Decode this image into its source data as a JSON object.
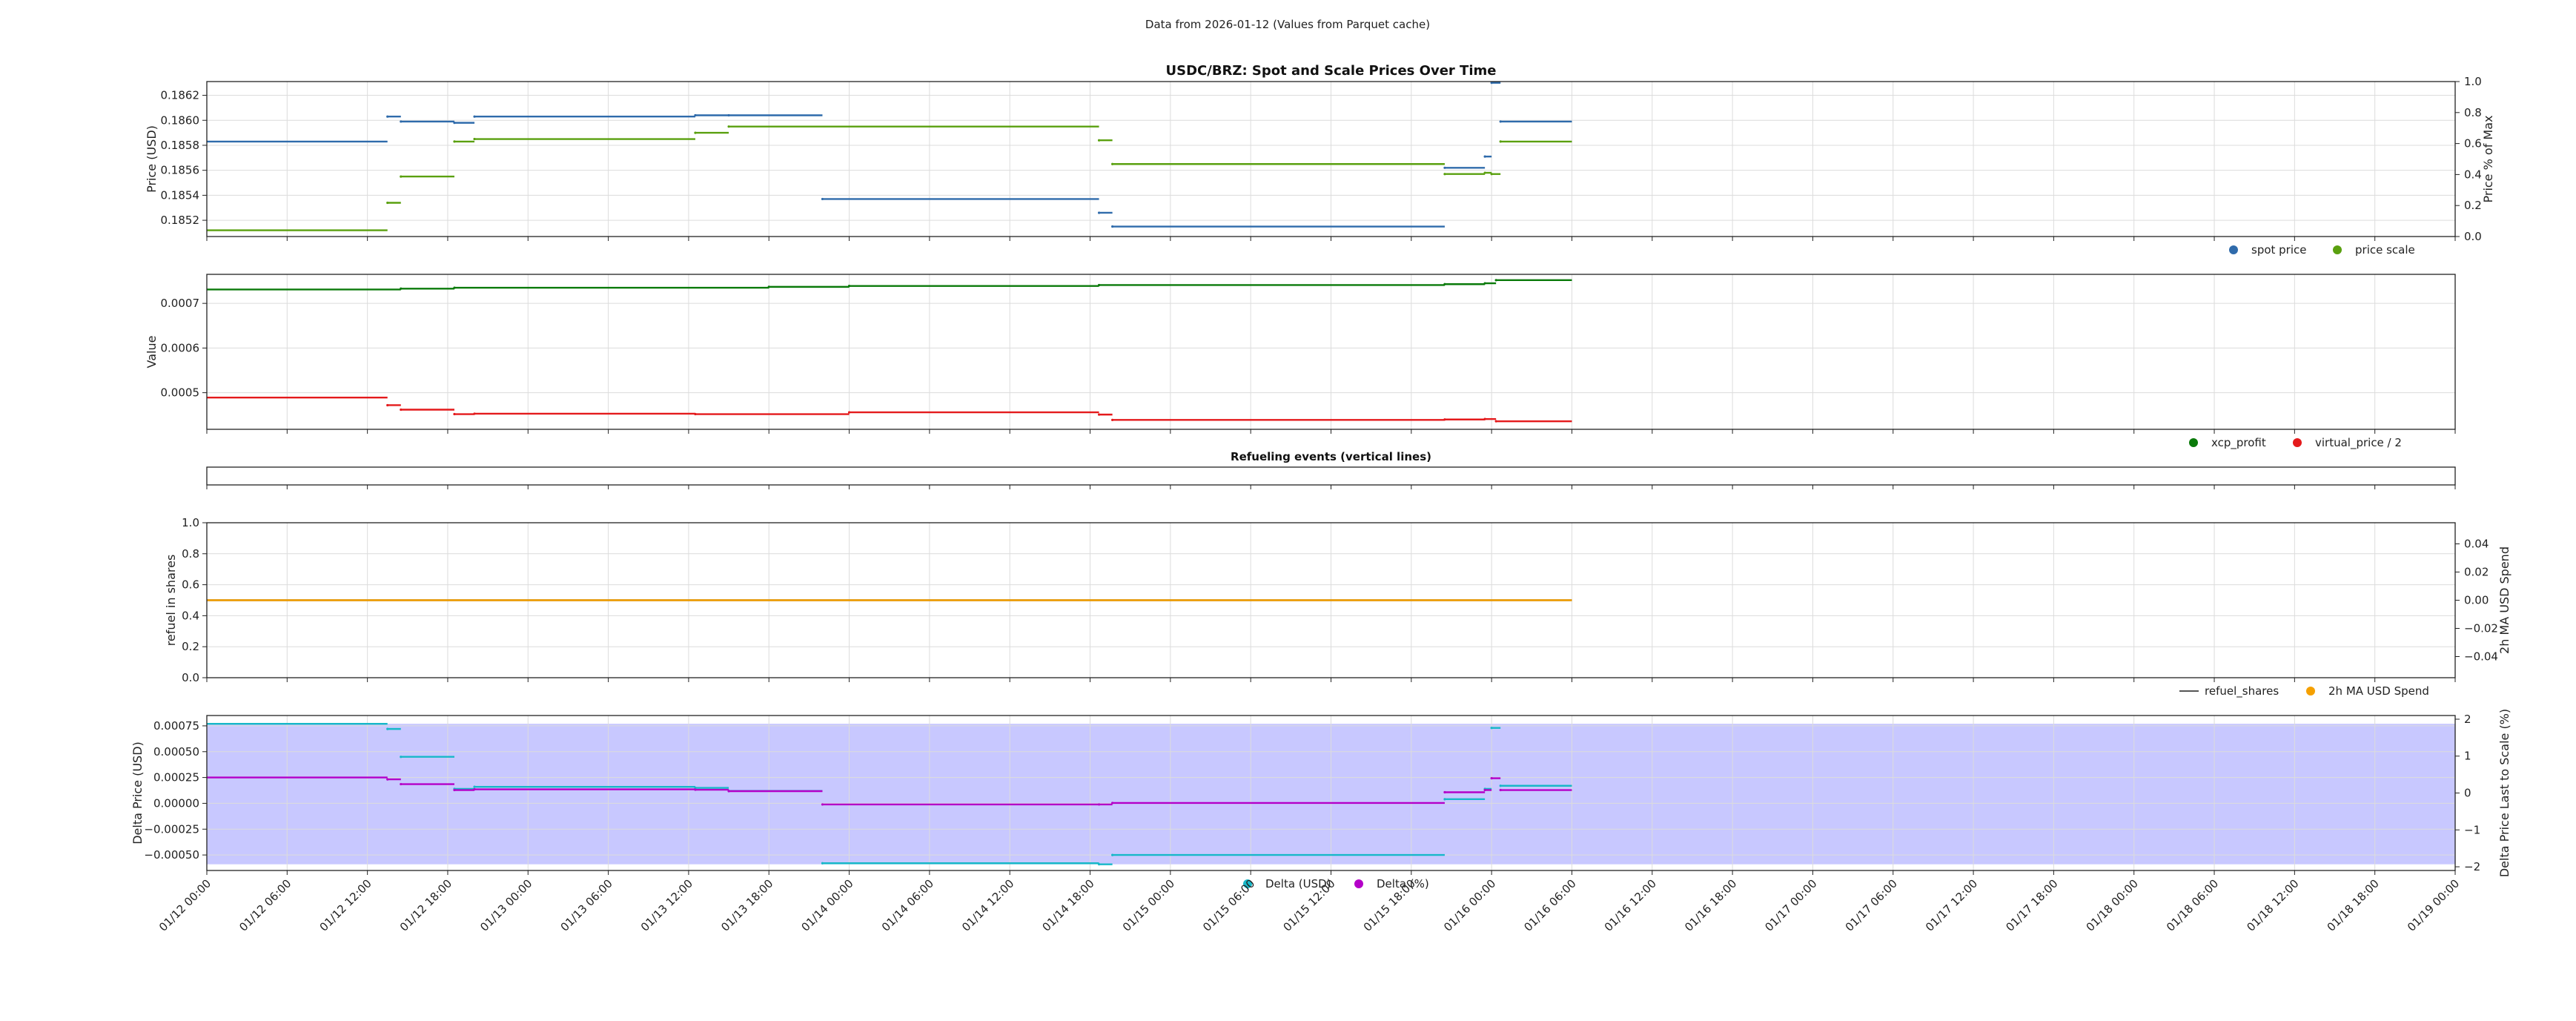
{
  "suptitle": "Data from 2026-01-12 (Values from Parquet cache)",
  "colors": {
    "spot": "#2f6bab",
    "scale": "#5aa00f",
    "xcp": "#0a7a0a",
    "vp": "#e41a1c",
    "refuel": "#555555",
    "ma": "#f5a000",
    "delta_usd": "#17b8c8",
    "delta_pct": "#b400c8",
    "fill": "#c8c8ff"
  },
  "x_axis": {
    "range": [
      "2026-01-12T00:00",
      "2026-01-19T00:00"
    ],
    "tick_labels": [
      "01/12 00:00",
      "01/12 06:00",
      "01/12 12:00",
      "01/12 18:00",
      "01/13 00:00",
      "01/13 06:00",
      "01/13 12:00",
      "01/13 18:00",
      "01/14 00:00",
      "01/14 06:00",
      "01/14 12:00",
      "01/14 18:00",
      "01/15 00:00",
      "01/15 06:00",
      "01/15 12:00",
      "01/15 18:00",
      "01/16 00:00",
      "01/16 06:00",
      "01/16 12:00",
      "01/16 18:00",
      "01/17 00:00",
      "01/17 06:00",
      "01/17 12:00",
      "01/17 18:00",
      "01/18 00:00",
      "01/18 06:00",
      "01/18 12:00",
      "01/18 18:00",
      "01/19 00:00"
    ]
  },
  "chart_data": [
    {
      "type": "line",
      "title": "USDC/BRZ: Spot and Scale Prices Over Time",
      "ylabel": "Price (USD)",
      "ylim": [
        0.18507,
        0.18631
      ],
      "yticks": [
        0.1852,
        0.1854,
        0.1856,
        0.1858,
        0.186,
        0.1862
      ],
      "ytick_labels": [
        "0.1852",
        "0.1854",
        "0.1856",
        "0.1858",
        "0.1860",
        "0.1862"
      ],
      "y2label": "Price % of Max",
      "y2lim": [
        0,
        1
      ],
      "y2ticks": [
        0,
        0.2,
        0.4,
        0.6,
        0.8,
        1.0
      ],
      "y2tick_labels": [
        "0.0",
        "0.2",
        "0.4",
        "0.6",
        "0.8",
        "1.0"
      ],
      "grid": true,
      "legend": "below-right",
      "series": [
        {
          "name": "spot price",
          "color_key": "spot",
          "x": [
            "2026-01-12T00:00",
            "2026-01-12T13:30",
            "2026-01-12T14:30",
            "2026-01-12T18:30",
            "2026-01-12T20:00",
            "2026-01-13T12:30",
            "2026-01-13T15:00",
            "2026-01-13T22:00",
            "2026-01-14T18:40",
            "2026-01-14T19:40",
            "2026-01-15T20:30",
            "2026-01-15T23:30",
            "2026-01-16T00:00",
            "2026-01-16T00:40",
            "2026-01-16T06:00"
          ],
          "y": [
            0.18583,
            0.18603,
            0.18599,
            0.18598,
            0.18603,
            0.18604,
            0.18604,
            0.18537,
            0.18526,
            0.18515,
            0.18562,
            0.18571,
            0.1863,
            0.18599,
            0.18599
          ]
        },
        {
          "name": "price scale",
          "color_key": "scale",
          "x": [
            "2026-01-12T00:00",
            "2026-01-12T13:30",
            "2026-01-12T14:30",
            "2026-01-12T18:30",
            "2026-01-12T20:00",
            "2026-01-13T12:30",
            "2026-01-13T15:00",
            "2026-01-14T18:40",
            "2026-01-14T19:40",
            "2026-01-15T20:30",
            "2026-01-15T23:30",
            "2026-01-16T00:00",
            "2026-01-16T00:40",
            "2026-01-16T06:00"
          ],
          "y": [
            0.18512,
            0.18534,
            0.18555,
            0.18583,
            0.18585,
            0.1859,
            0.18595,
            0.18584,
            0.18565,
            0.18557,
            0.18558,
            0.18557,
            0.18583,
            0.18583
          ]
        }
      ]
    },
    {
      "type": "line",
      "ylabel": "Value",
      "ylim": [
        0.000418,
        0.000765
      ],
      "yticks": [
        0.0005,
        0.0006,
        0.0007
      ],
      "ytick_labels": [
        "0.0005",
        "0.0006",
        "0.0007"
      ],
      "grid": true,
      "legend": "below-right",
      "series": [
        {
          "name": "xcp_profit",
          "color_key": "xcp",
          "x": [
            "2026-01-12T00:00",
            "2026-01-12T14:30",
            "2026-01-12T18:30",
            "2026-01-13T18:00",
            "2026-01-14T00:00",
            "2026-01-14T18:40",
            "2026-01-15T20:30",
            "2026-01-15T23:30",
            "2026-01-16T00:20",
            "2026-01-16T06:00"
          ],
          "y": [
            0.000731,
            0.000733,
            0.000735,
            0.000737,
            0.000739,
            0.000741,
            0.000743,
            0.000745,
            0.000752,
            0.000752
          ]
        },
        {
          "name": "virtual_price / 2",
          "color_key": "vp",
          "x": [
            "2026-01-12T00:00",
            "2026-01-12T13:30",
            "2026-01-12T14:30",
            "2026-01-12T18:30",
            "2026-01-12T20:00",
            "2026-01-13T12:30",
            "2026-01-14T00:00",
            "2026-01-14T18:40",
            "2026-01-14T19:40",
            "2026-01-15T20:30",
            "2026-01-15T23:30",
            "2026-01-16T00:20",
            "2026-01-16T06:00"
          ],
          "y": [
            0.000489,
            0.000472,
            0.000462,
            0.000452,
            0.000453,
            0.000452,
            0.000456,
            0.000451,
            0.000439,
            0.00044,
            0.000441,
            0.000436,
            0.000436
          ]
        }
      ]
    },
    {
      "type": "line",
      "title": "Refueling events (vertical lines)",
      "series": []
    },
    {
      "type": "line",
      "ylabel": "refuel in shares",
      "ylim": [
        0,
        1
      ],
      "yticks": [
        0,
        0.2,
        0.4,
        0.6,
        0.8,
        1.0
      ],
      "ytick_labels": [
        "0.0",
        "0.2",
        "0.4",
        "0.6",
        "0.8",
        "1.0"
      ],
      "y2label": "2h MA USD Spend",
      "y2lim": [
        -0.055,
        0.055
      ],
      "y2ticks": [
        -0.04,
        -0.02,
        0,
        0.02,
        0.04
      ],
      "y2tick_labels": [
        "−0.04",
        "−0.02",
        "0.00",
        "0.02",
        "0.04"
      ],
      "grid": true,
      "legend": "below-right",
      "series": [
        {
          "name": "refuel_shares",
          "color_key": "refuel",
          "x": [
            "2026-01-12T00:00",
            "2026-01-16T06:00"
          ],
          "y": [
            0.5,
            0.5
          ]
        },
        {
          "name": "2h MA USD Spend",
          "color_key": "ma",
          "axis": "right",
          "x": [
            "2026-01-12T00:00",
            "2026-01-16T06:00"
          ],
          "y": [
            0,
            0
          ]
        }
      ]
    },
    {
      "type": "area",
      "ylabel": "Delta Price (USD)",
      "ylim": [
        -0.00065,
        0.00085
      ],
      "yticks": [
        -0.0005,
        -0.00025,
        0,
        0.00025,
        0.0005,
        0.00075
      ],
      "ytick_labels": [
        "−0.00050",
        "−0.00025",
        "0.00000",
        "0.00025",
        "0.00050",
        "0.00075"
      ],
      "y2label": "Delta Price Last to Scale (%)",
      "y2lim": [
        -2.1,
        2.1
      ],
      "y2ticks": [
        -2,
        -1,
        0,
        1,
        2
      ],
      "y2tick_labels": [
        "−2",
        "−1",
        "0",
        "1",
        "2"
      ],
      "grid": true,
      "legend": "below-center",
      "series": [
        {
          "name": "Delta (USD)",
          "color_key": "delta_usd",
          "x": [
            "2026-01-12T00:00",
            "2026-01-12T13:30",
            "2026-01-12T14:30",
            "2026-01-12T18:30",
            "2026-01-12T20:00",
            "2026-01-13T12:30",
            "2026-01-13T15:00",
            "2026-01-13T22:00",
            "2026-01-14T18:40",
            "2026-01-14T19:40",
            "2026-01-15T20:30",
            "2026-01-15T23:30",
            "2026-01-16T00:00",
            "2026-01-16T00:40",
            "2026-01-16T06:00"
          ],
          "y": [
            0.00077,
            0.00072,
            0.00045,
            0.00014,
            0.00016,
            0.00015,
            0.00012,
            -0.00058,
            -0.00059,
            -0.0005,
            4e-05,
            0.00014,
            0.00073,
            0.00017,
            0.00017
          ]
        },
        {
          "name": "Delta (%)",
          "color_key": "delta_pct",
          "axis": "right",
          "x": [
            "2026-01-12T00:00",
            "2026-01-12T13:30",
            "2026-01-12T14:30",
            "2026-01-12T18:30",
            "2026-01-12T20:00",
            "2026-01-13T12:30",
            "2026-01-13T15:00",
            "2026-01-13T22:00",
            "2026-01-14T18:40",
            "2026-01-14T19:40",
            "2026-01-15T20:30",
            "2026-01-15T23:30",
            "2026-01-16T00:00",
            "2026-01-16T00:40",
            "2026-01-16T06:00"
          ],
          "y": [
            0.42,
            0.37,
            0.24,
            0.08,
            0.1,
            0.09,
            0.05,
            -0.31,
            -0.31,
            -0.27,
            0.02,
            0.08,
            0.4,
            0.08,
            0.08
          ]
        }
      ]
    }
  ]
}
